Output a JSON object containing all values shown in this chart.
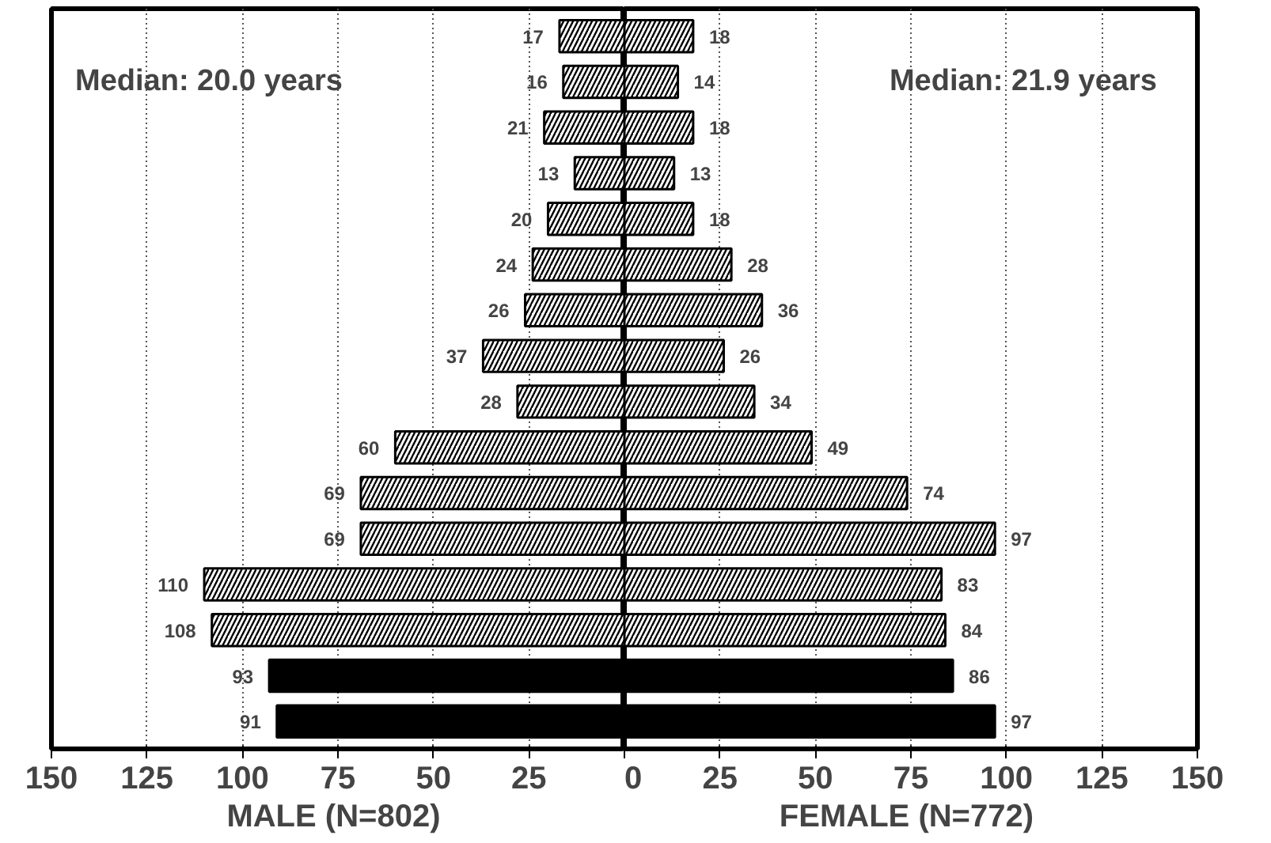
{
  "chart_data": [
    {
      "type": "bar",
      "orientation": "horizontal",
      "xlabel": "MALE  (N=802)",
      "categories": [
        null,
        null,
        null,
        null,
        null,
        null,
        null,
        null,
        null,
        null,
        null,
        null,
        null,
        null,
        null,
        null
      ],
      "colors": [
        "#ffffff",
        "#ffffff",
        "#ffffff",
        "#ffffff",
        "#ffffff",
        "#ffffff",
        "#ffffff",
        "#ffffff",
        "#ffffff",
        "#ffffff",
        "#ffffff",
        "#ffffff",
        "#ffffff",
        "#ffffff",
        "#000000",
        "#000000"
      ],
      "values": [
        17,
        16,
        21,
        13,
        20,
        24,
        26,
        37,
        28,
        60,
        69,
        69,
        110,
        108,
        93,
        91
      ],
      "data_labels": true,
      "xlim": [
        150,
        0
      ],
      "xticks": [
        150,
        125,
        100,
        75,
        50,
        25
      ],
      "grid": "x",
      "annotations": [
        "Median:  20.0  years"
      ]
    },
    {
      "type": "bar",
      "orientation": "horizontal",
      "xlabel": "FEMALE  (N=772)",
      "categories": [
        null,
        null,
        null,
        null,
        null,
        null,
        null,
        null,
        null,
        null,
        null,
        null,
        null,
        null,
        null,
        null
      ],
      "colors": [
        "#ffffff",
        "#ffffff",
        "#ffffff",
        "#ffffff",
        "#ffffff",
        "#ffffff",
        "#ffffff",
        "#ffffff",
        "#ffffff",
        "#ffffff",
        "#ffffff",
        "#ffffff",
        "#ffffff",
        "#ffffff",
        "#000000",
        "#000000"
      ],
      "values": [
        18,
        14,
        18,
        13,
        18,
        28,
        36,
        26,
        34,
        49,
        74,
        97,
        83,
        84,
        86,
        97
      ],
      "data_labels": true,
      "xlim": [
        0,
        150
      ],
      "xticks": [
        0,
        25,
        50,
        75,
        100,
        125,
        150
      ],
      "grid": "x",
      "annotations": [
        "Median:  21.9  years"
      ]
    }
  ]
}
